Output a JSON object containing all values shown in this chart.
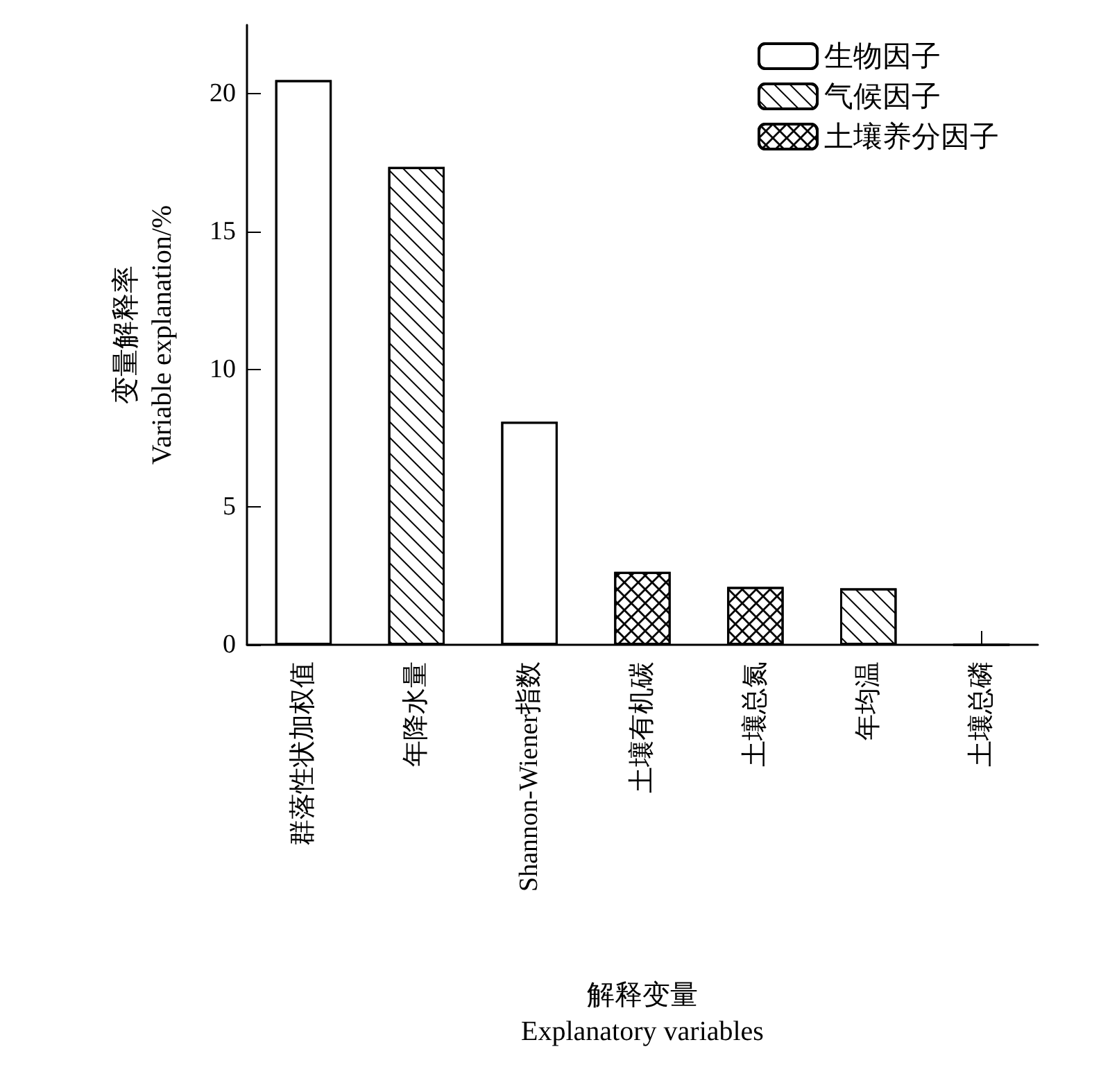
{
  "chart_data": {
    "type": "bar",
    "xlabel": "解释变量\nExplanatory variables",
    "ylabel": "变量解释率\nVariable explanation/%",
    "categories": [
      "群落性状加权值",
      "年降水量",
      "Shannon-Wiener指数",
      "土壤有机碳",
      "土壤总氮",
      "年均温",
      "土壤总磷"
    ],
    "series": [
      {
        "name": "生物因子",
        "color": "#ffffff",
        "values": [
          20.5,
          null,
          8.1,
          null,
          null,
          null,
          null
        ]
      },
      {
        "name": "气候因子",
        "color": "#ffffff",
        "values": [
          null,
          17.35,
          null,
          null,
          null,
          2.05,
          null
        ]
      },
      {
        "name": "土壤养分因子",
        "color": "#ffffff",
        "values": [
          null,
          null,
          null,
          2.65,
          2.1,
          null,
          0
        ]
      }
    ],
    "ylim": [
      0,
      22.5
    ],
    "yticks": [
      0,
      5,
      10,
      15,
      20
    ],
    "grid": false,
    "legend": "top right"
  }
}
